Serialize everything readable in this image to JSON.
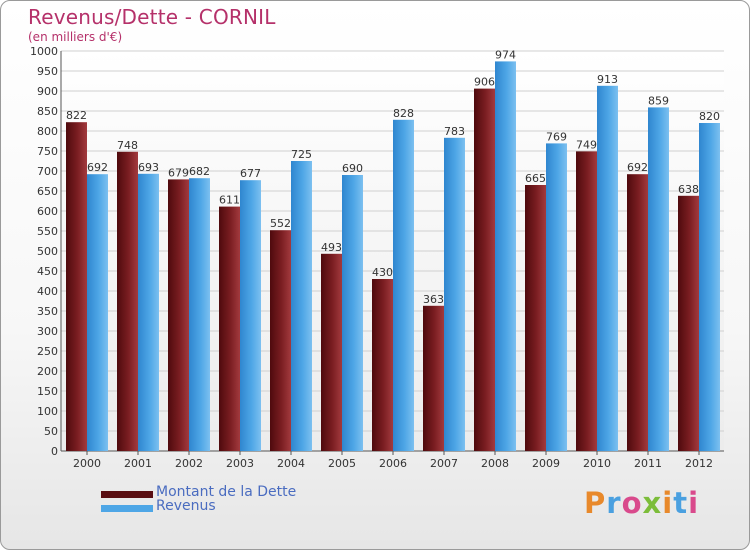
{
  "header": {
    "title": "Revenus/Dette - CORNIL",
    "subtitle": "(en milliers d'€)"
  },
  "brand": {
    "logo_text": "Proxiti",
    "logo_colors": [
      "#e8892b",
      "#4aa0e0",
      "#d94a8c",
      "#7cbd3a",
      "#e8892b",
      "#4aa0e0",
      "#d94a8c"
    ]
  },
  "chart_data": {
    "type": "bar",
    "title": "Revenus/Dette - CORNIL",
    "subtitle": "(en milliers d'€)",
    "categories": [
      "2000",
      "2001",
      "2002",
      "2003",
      "2004",
      "2005",
      "2006",
      "2007",
      "2008",
      "2009",
      "2010",
      "2011",
      "2012"
    ],
    "series": [
      {
        "name": "Montant de la Dette",
        "color": "#7b1e22",
        "values": [
          822,
          748,
          679,
          611,
          552,
          493,
          430,
          363,
          906,
          665,
          749,
          692,
          638
        ]
      },
      {
        "name": "Revenus",
        "color": "#4ea6e6",
        "values": [
          692,
          693,
          682,
          677,
          725,
          690,
          828,
          783,
          974,
          769,
          913,
          859,
          820
        ]
      }
    ],
    "ylim": [
      0,
      1000
    ],
    "ytick_step": 50,
    "grid": true,
    "legend": "bottom-left"
  }
}
